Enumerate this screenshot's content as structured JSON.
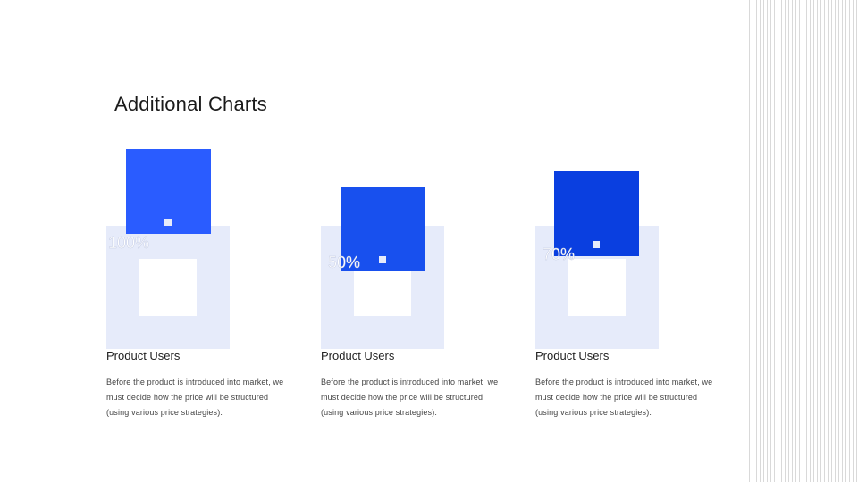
{
  "page": {
    "title": "Additional Charts"
  },
  "charts": [
    {
      "value_label": "100%",
      "value": 1.0,
      "color": "#2a5cff",
      "label": "Product Users",
      "description_lines": [
        "Before the product is introduced into market, we",
        "must decide how the price will be structured",
        "(using various price strategies)."
      ]
    },
    {
      "value_label": "50%",
      "value": 0.5,
      "color": "#1850ee",
      "label": "Product Users",
      "description_lines": [
        "Before the product is introduced into market, we",
        "must decide how the price will be structured",
        "(using various price strategies)."
      ]
    },
    {
      "value_label": "70%",
      "value": 0.7,
      "color": "#0a3fe0",
      "label": "Product Users",
      "description_lines": [
        "Before the product is introduced into market, we",
        "must decide how the price will be structured",
        "(using various price strategies)."
      ]
    }
  ],
  "colors": {
    "frame": "#e6ebfa",
    "stripes": "#d9d9d9"
  }
}
